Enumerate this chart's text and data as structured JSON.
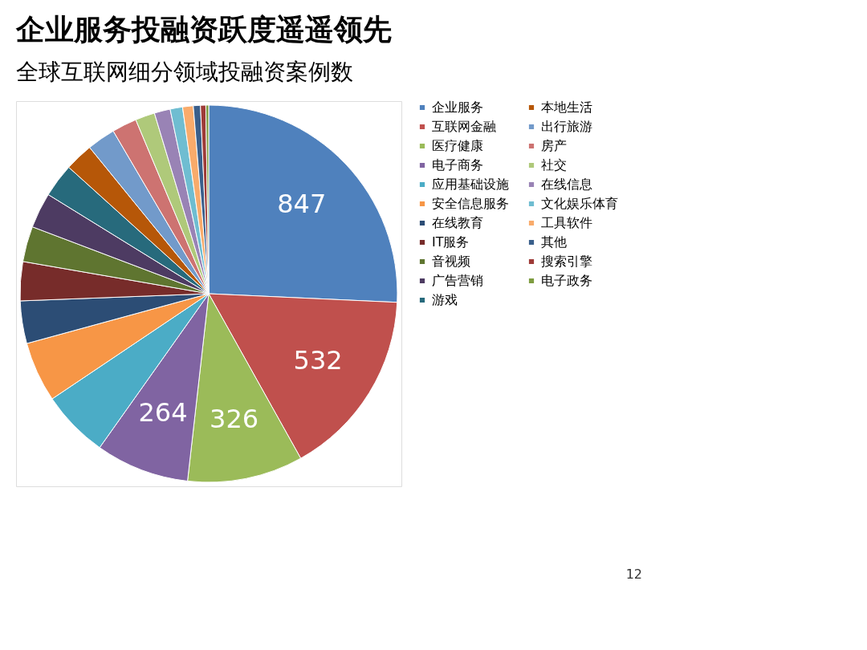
{
  "chart_data": {
    "type": "pie",
    "title": "企业服务投融资跃度遥遥领先",
    "subtitle": "全球互联网细分领域投融资案例数",
    "categories": [
      "企业服务",
      "互联网金融",
      "医疗健康",
      "电子商务",
      "应用基础设施",
      "安全信息服务",
      "在线教育",
      "IT服务",
      "音视频",
      "广告营销",
      "游戏",
      "本地生活",
      "出行旅游",
      "房产",
      "社交",
      "在线信息",
      "文化娱乐体育",
      "工具软件",
      "其他",
      "搜索引擎",
      "电子政务"
    ],
    "values": [
      847,
      532,
      326,
      264,
      190,
      170,
      120,
      110,
      100,
      100,
      95,
      80,
      80,
      70,
      55,
      45,
      35,
      30,
      20,
      15,
      8
    ],
    "value_labels": [
      "847",
      "532",
      "326",
      "264",
      null,
      null,
      null,
      null,
      null,
      null,
      null,
      null,
      null,
      null,
      null,
      null,
      null,
      null,
      null,
      null,
      null
    ],
    "colors": [
      "#4f81bd",
      "#c0504d",
      "#9bbb59",
      "#8064a2",
      "#4bacc6",
      "#f79646",
      "#2c4d75",
      "#772c2a",
      "#5f7530",
      "#4d3b62",
      "#276a7c",
      "#b65708",
      "#729aca",
      "#cd7371",
      "#afc97a",
      "#9983b5",
      "#6fbdd1",
      "#f9ab6b",
      "#3a5f8b",
      "#9e3b38",
      "#7e9c40"
    ],
    "legend": "right",
    "annotations": [
      "12"
    ]
  }
}
